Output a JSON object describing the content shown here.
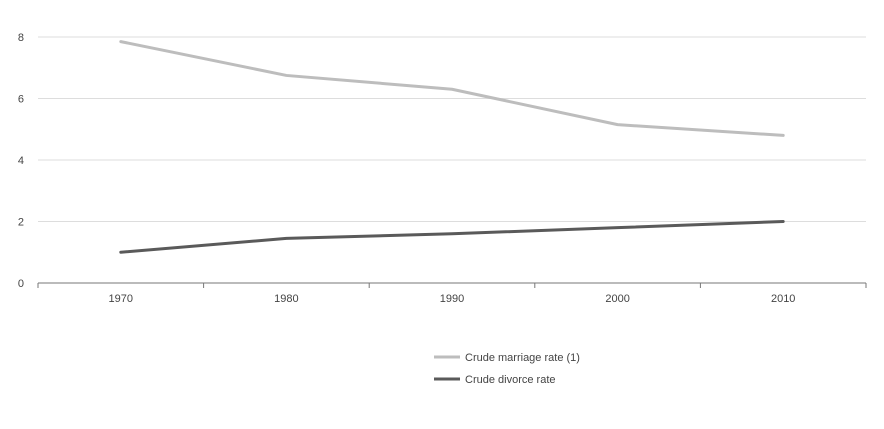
{
  "chart_data": {
    "type": "line",
    "categories": [
      "1970",
      "1980",
      "1990",
      "2000",
      "2010"
    ],
    "x": [
      1970,
      1980,
      1990,
      2000,
      2010
    ],
    "xlim": [
      1965,
      2015
    ],
    "ylim": [
      0,
      8
    ],
    "yticks": [
      0,
      2,
      4,
      6,
      8
    ],
    "grid": true,
    "legend_position": "bottom-center",
    "series": [
      {
        "name": "Crude marriage rate (1)",
        "color": "#bdbdbd",
        "values": [
          7.85,
          6.75,
          6.3,
          5.15,
          4.8
        ]
      },
      {
        "name": "Crude divorce rate",
        "color": "#5a5a5a",
        "values": [
          1.0,
          1.45,
          1.6,
          1.8,
          2.0
        ]
      }
    ]
  }
}
